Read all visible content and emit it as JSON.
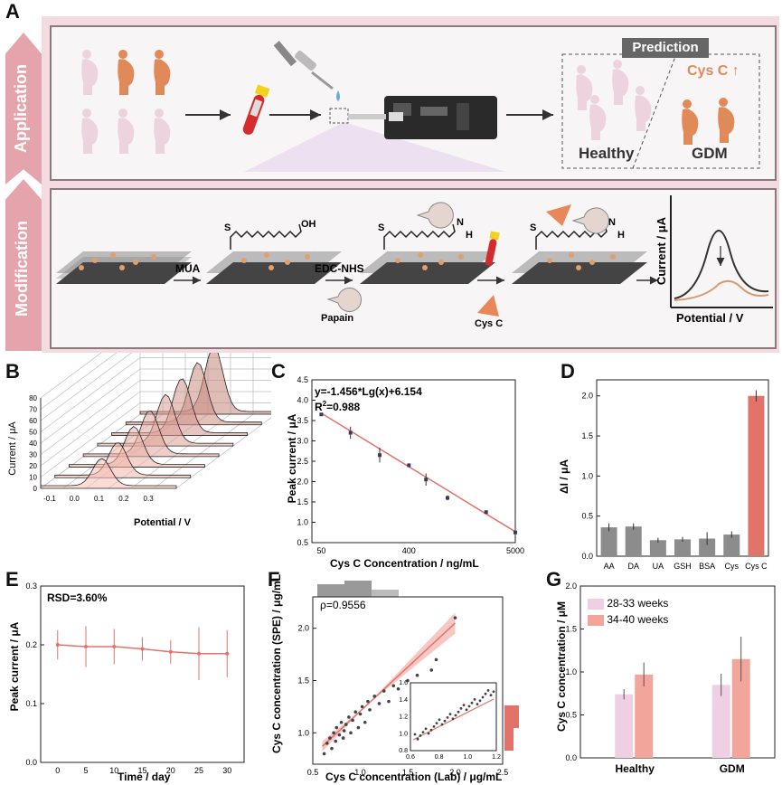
{
  "panel_labels": {
    "a": "A",
    "b": "B",
    "c": "C",
    "d": "D",
    "e": "E",
    "f": "F",
    "g": "G"
  },
  "scheme": {
    "application_label": "Application",
    "modification_label": "Modification",
    "prediction_label": "Prediction",
    "cysc_up_label": "Cys C",
    "healthy_label": "Healthy",
    "gdm_label": "GDM",
    "mua_label": "MUA",
    "edc_label": "EDC-NHS",
    "papain_label": "Papain",
    "cysc_label": "Cys C",
    "s_label": "S",
    "oh_label": "OH",
    "n_label": "N",
    "h_label": "H",
    "curve_ylabel": "Current / μA",
    "curve_xlabel": "Potential / V",
    "colors": {
      "pink_bg": "#f4dbe1",
      "tag": "#e5a4ab",
      "orange": "#e08a5a",
      "light_figure": "#ecd3dd"
    }
  },
  "chart_data": [
    {
      "id": "B",
      "type": "area",
      "ylabel": "Current / μA",
      "xlabel": "Potential / V",
      "xticks": [
        "-0.1",
        "0.0",
        "0.1",
        "0.2",
        "0.3"
      ],
      "yticks": [
        "0",
        "10",
        "20",
        "30",
        "40",
        "50",
        "60",
        "70",
        "80"
      ],
      "series_count": 8
    },
    {
      "id": "C",
      "type": "scatter",
      "equation": "y=-1.456*Lg(x)+6.154",
      "r2_prefix": "R",
      "r2_sup": "2",
      "r2_value": "=0.988",
      "xlabel": "Cys C Concentration / ng/mL",
      "ylabel": "Peak current / μA",
      "xscale": "log",
      "xlim": [
        40,
        5000
      ],
      "ylim": [
        0.5,
        4.5
      ],
      "xticks": [
        "50",
        "400",
        "5000"
      ],
      "yticks": [
        "0.5",
        "1.0",
        "1.5",
        "2.0",
        "2.5",
        "3.0",
        "3.5",
        "4.0",
        "4.5"
      ],
      "x": [
        50,
        100,
        200,
        400,
        600,
        1000,
        2500,
        5000
      ],
      "y": [
        3.65,
        3.2,
        2.65,
        2.4,
        2.05,
        1.6,
        1.25,
        0.75
      ],
      "err": [
        0.03,
        0.15,
        0.18,
        0.05,
        0.15,
        0.06,
        0.03,
        0.03
      ]
    },
    {
      "id": "D",
      "type": "bar",
      "ylabel": "ΔI / μA",
      "categories": [
        "AA",
        "DA",
        "UA",
        "GSH",
        "BSA",
        "Cys",
        "Cys C"
      ],
      "values": [
        0.36,
        0.37,
        0.2,
        0.21,
        0.22,
        0.27,
        2.0
      ],
      "err": [
        0.05,
        0.04,
        0.03,
        0.03,
        0.08,
        0.04,
        0.07
      ],
      "ylim": [
        0,
        2.2
      ],
      "yticks": [
        "0.0",
        "0.5",
        "1.0",
        "1.5",
        "2.0"
      ],
      "colors": [
        "#8c8c8c",
        "#8c8c8c",
        "#8c8c8c",
        "#8c8c8c",
        "#8c8c8c",
        "#8c8c8c",
        "#e2736b"
      ]
    },
    {
      "id": "E",
      "type": "line",
      "annotation": "RSD=3.60%",
      "xlabel": "Time / day",
      "ylabel": "Peak current / μA",
      "x": [
        0,
        5,
        10,
        15,
        20,
        25,
        30
      ],
      "y": [
        0.2,
        0.197,
        0.197,
        0.193,
        0.188,
        0.185,
        0.185
      ],
      "err": [
        0.025,
        0.035,
        0.03,
        0.02,
        0.02,
        0.045,
        0.04
      ],
      "xlim": [
        -3,
        33
      ],
      "ylim": [
        0,
        0.3
      ],
      "xticks": [
        "0",
        "5",
        "10",
        "15",
        "20",
        "25",
        "30"
      ],
      "yticks": [
        "0.0",
        "0.1",
        "0.2",
        "0.3"
      ]
    },
    {
      "id": "F",
      "type": "scatter",
      "rho": "ρ=0.9556",
      "xlabel": "Cys C concentration (Lab) / μg/mL",
      "ylabel": "Cys C concentration (SPE) / μg/mL",
      "xlim": [
        0.5,
        2.5
      ],
      "ylim": [
        0.7,
        2.3
      ],
      "xticks": [
        "0.5",
        "1.0",
        "1.5",
        "2.0",
        "2.5"
      ],
      "yticks": [
        "1.0",
        "1.5",
        "2.0"
      ],
      "x": [
        0.62,
        0.65,
        0.68,
        0.7,
        0.72,
        0.74,
        0.75,
        0.78,
        0.8,
        0.82,
        0.83,
        0.85,
        0.88,
        0.9,
        0.92,
        0.95,
        0.98,
        1.0,
        1.02,
        1.05,
        1.08,
        1.1,
        1.15,
        1.2,
        1.25,
        1.3,
        1.35,
        1.4,
        1.5,
        1.6,
        1.75,
        1.8,
        2.0
      ],
      "y": [
        0.8,
        0.9,
        0.95,
        0.85,
        1.0,
        0.92,
        1.05,
        0.98,
        1.1,
        0.95,
        1.02,
        1.08,
        1.15,
        1.0,
        1.12,
        1.2,
        1.05,
        1.18,
        1.25,
        1.1,
        1.3,
        1.22,
        1.35,
        1.28,
        1.4,
        1.3,
        1.45,
        1.42,
        1.5,
        1.55,
        1.6,
        1.7,
        2.1
      ],
      "inset": {
        "xticks": [
          "0.6",
          "0.8",
          "1.0",
          "1.2"
        ],
        "yticks": [
          "0.8",
          "1.0",
          "1.2",
          "1.4",
          "1.6"
        ]
      }
    },
    {
      "id": "G",
      "type": "bar",
      "ylabel": "Cys C concentration / μM",
      "categories": [
        "Healthy",
        "GDM"
      ],
      "series": [
        {
          "name": "28-33 weeks",
          "values": [
            0.74,
            0.85
          ],
          "err": [
            0.06,
            0.13
          ],
          "color": "#efcfe3"
        },
        {
          "name": "34-40 weeks",
          "values": [
            0.97,
            1.15
          ],
          "err": [
            0.14,
            0.26
          ],
          "color": "#f2a59a"
        }
      ],
      "ylim": [
        0,
        2
      ],
      "yticks": [
        "0.0",
        "0.5",
        "1.0",
        "1.5",
        "2.0"
      ]
    }
  ]
}
